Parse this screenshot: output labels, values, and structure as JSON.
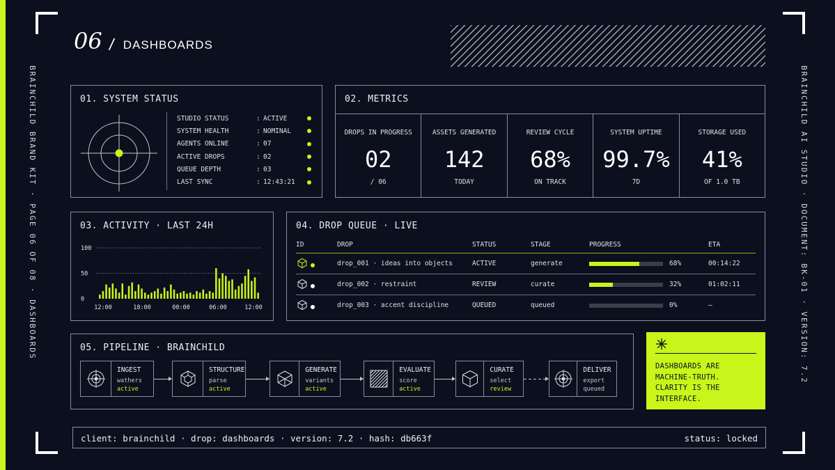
{
  "page": {
    "number": "06",
    "slash": "/",
    "title": "DASHBOARDS"
  },
  "side": {
    "left": "BRAINCHILD BRAND KIT  ·  PAGE 06 OF 08  ·  DASHBOARDS",
    "right": "BRAINCHILD AI STUDIO  ·  DOCUMENT: BK-01  ·  VERSION: 7.2"
  },
  "colors": {
    "accent": "#c8f51a",
    "background": "#0b0f1e",
    "line": "#8a8e9c"
  },
  "system_status": {
    "title": "01. SYSTEM STATUS",
    "rows": [
      {
        "key": "STUDIO STATUS",
        "sep": ":",
        "value": "ACTIVE",
        "dot": "accent"
      },
      {
        "key": "SYSTEM HEALTH",
        "sep": ":",
        "value": "NOMINAL",
        "dot": "accent"
      },
      {
        "key": "AGENTS ONLINE",
        "sep": ":",
        "value": "07",
        "dot": "accent"
      },
      {
        "key": "ACTIVE DROPS",
        "sep": ":",
        "value": "02",
        "dot": "accent"
      },
      {
        "key": "QUEUE DEPTH",
        "sep": ":",
        "value": "03",
        "dot": "accent"
      },
      {
        "key": "LAST SYNC",
        "sep": ":",
        "value": "12:43:21",
        "dot": "accent"
      }
    ]
  },
  "metrics": {
    "title": "02. METRICS",
    "items": [
      {
        "label": "DROPS IN PROGRESS",
        "value": "02",
        "sub": "/ 06",
        "highlight": false
      },
      {
        "label": "ASSETS GENERATED",
        "value": "142",
        "sub": "TODAY",
        "highlight": false
      },
      {
        "label": "REVIEW CYCLE",
        "value": "68%",
        "sub": "ON TRACK",
        "highlight": true
      },
      {
        "label": "SYSTEM UPTIME",
        "value": "99.7%",
        "sub": "7D",
        "highlight": false
      },
      {
        "label": "STORAGE USED",
        "value": "41%",
        "sub": "OF 1.0 TB",
        "highlight": false
      }
    ]
  },
  "activity": {
    "title": "03. ACTIVITY · LAST 24H"
  },
  "chart_data": {
    "type": "bar",
    "title": "03. ACTIVITY · LAST 24H",
    "ylim": [
      0,
      100
    ],
    "yticks": [
      "100",
      "50",
      "0"
    ],
    "xticks": [
      "12:00",
      "18:00",
      "00:00",
      "06:00",
      "12:00"
    ],
    "grid": "dotted horizontal at 50 and 100",
    "values": [
      8,
      15,
      28,
      22,
      30,
      20,
      12,
      30,
      8,
      25,
      32,
      15,
      28,
      20,
      12,
      8,
      12,
      15,
      20,
      10,
      22,
      15,
      28,
      18,
      10,
      12,
      15,
      10,
      12,
      8,
      15,
      12,
      18,
      10,
      15,
      12,
      60,
      40,
      50,
      45,
      35,
      38,
      18,
      25,
      30,
      45,
      58,
      35,
      42,
      12
    ]
  },
  "queue": {
    "title": "04. DROP QUEUE · LIVE",
    "headers": {
      "id": "ID",
      "drop": "DROP",
      "status": "STATUS",
      "stage": "STAGE",
      "progress": "PROGRESS",
      "eta": "ETA"
    },
    "rows": [
      {
        "icon": "cube-icon",
        "dot": "accent",
        "drop": "drop_001 · ideas into objects",
        "status": "ACTIVE",
        "status_accent": true,
        "stage": "generate",
        "progress": 0.68,
        "progress_label": "68%",
        "eta": "00:14:22"
      },
      {
        "icon": "cube-icon",
        "dot": "white",
        "drop": "drop_002 · restraint",
        "status": "REVIEW",
        "status_accent": true,
        "stage": "curate",
        "progress": 0.32,
        "progress_label": "32%",
        "eta": "01:02:11"
      },
      {
        "icon": "cube-icon",
        "dot": "white",
        "drop": "drop_003 · accent discipline",
        "status": "QUEUED",
        "status_accent": false,
        "stage": "queued",
        "progress": 0,
        "progress_label": "0%",
        "eta": "—"
      }
    ]
  },
  "pipeline": {
    "title": "05. PIPELINE · BRAINCHILD",
    "stages": [
      {
        "name": "INGEST",
        "sub": "wathers",
        "state": "active",
        "state_accent": true,
        "icon": "target-icon"
      },
      {
        "name": "STRUCTURE",
        "sub": "parse",
        "state": "active",
        "state_accent": true,
        "icon": "cube-wire-icon"
      },
      {
        "name": "GENERATE",
        "sub": "variants",
        "state": "active",
        "state_accent": true,
        "icon": "hexagon-icon"
      },
      {
        "name": "EVALUATE",
        "sub": "score",
        "state": "active",
        "state_accent": true,
        "icon": "hatch-square-icon"
      },
      {
        "name": "CURATE",
        "sub": "select",
        "state": "review",
        "state_accent": true,
        "icon": "cube-icon"
      },
      {
        "name": "DELIVER",
        "sub": "export",
        "state": "queued",
        "state_accent": false,
        "icon": "target-icon"
      }
    ]
  },
  "callout": {
    "icon": "asterisk-icon",
    "lines": [
      "DASHBOARDS ARE",
      "MACHINE-TRUTH.",
      "CLARITY IS THE",
      "INTERFACE."
    ]
  },
  "footer": {
    "left": "client: brainchild  ·  drop: dashboards  ·  version: 7.2  ·  hash: db663f",
    "right": "status: locked"
  }
}
